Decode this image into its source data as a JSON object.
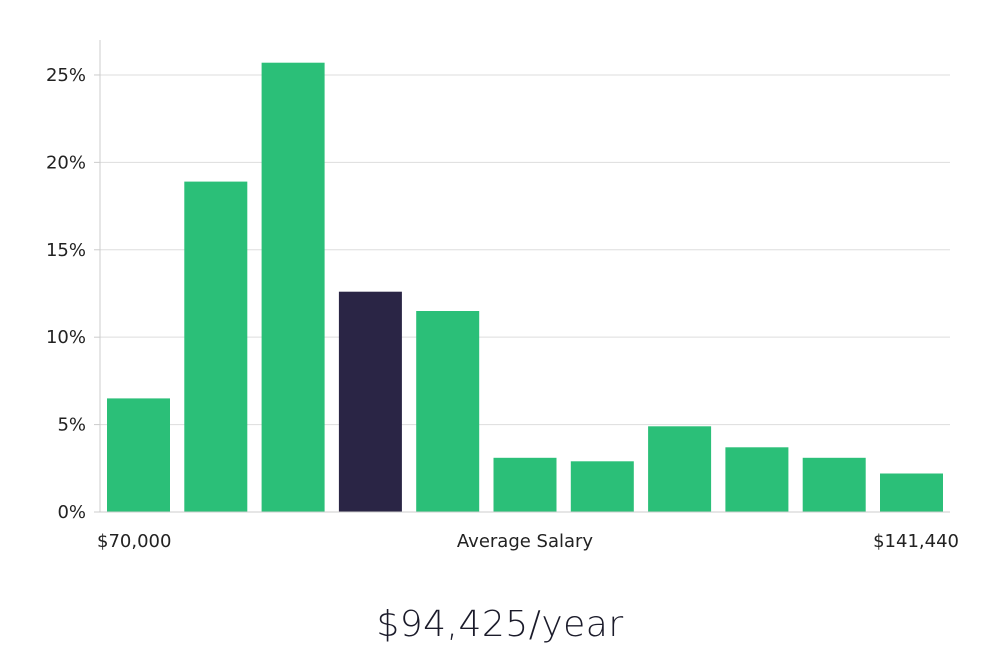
{
  "chart_data": {
    "type": "bar",
    "ylim": [
      0,
      27
    ],
    "yticks": [
      0,
      5,
      10,
      15,
      20,
      25
    ],
    "ytick_suffix": "%",
    "grid": true,
    "values": [
      6.5,
      18.9,
      25.7,
      12.6,
      11.5,
      3.1,
      2.9,
      4.9,
      3.7,
      3.1,
      2.2
    ],
    "highlight_index": 3,
    "colors": {
      "bar": "#2bbf78",
      "highlight": "#2a2545",
      "grid": "#dddddd",
      "axis": "#cccccc"
    },
    "x_min_label": "$70,000",
    "x_max_label": "$141,440",
    "xlabel": "Average Salary"
  },
  "salary_text": "$94,425/year"
}
